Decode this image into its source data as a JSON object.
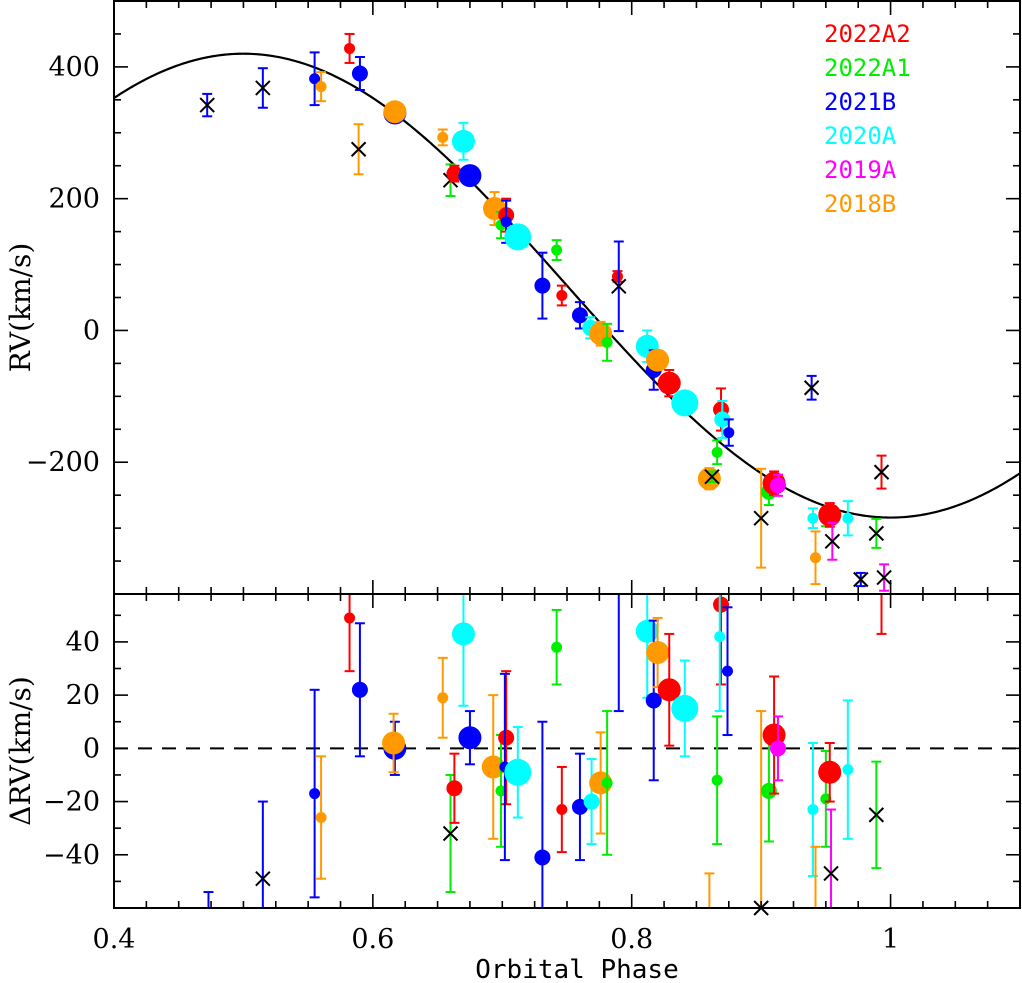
{
  "chart_data": {
    "type": "scatter",
    "x_range": [
      0.4,
      1.1
    ],
    "xlabel": "Orbital Phase",
    "x_ticks": [
      0.4,
      0.6,
      0.8,
      1.0
    ],
    "x_tick_labels": [
      "0.4",
      "0.6",
      "0.8",
      "1"
    ],
    "legend_position": "top-right",
    "colors": {
      "2022A2": "#ff0000",
      "2022A1": "#00ee00",
      "2021B": "#0000ff",
      "2020A": "#00ffff",
      "2019A": "#ff00ff",
      "2018B": "#ff9900",
      "excluded": "#000000"
    },
    "legend": [
      "2022A2",
      "2022A1",
      "2021B",
      "2020A",
      "2019A",
      "2018B"
    ],
    "top_panel": {
      "ylabel": "RV(km/s)",
      "y_range": [
        -400,
        500
      ],
      "y_ticks": [
        -200,
        0,
        200,
        400
      ],
      "y_tick_labels": [
        "−200",
        "0",
        "200",
        "400"
      ],
      "model_curve": {
        "gamma": 68,
        "amplitude": 352,
        "phase_of_max": 0.5,
        "style": "solid",
        "color": "#000000"
      },
      "points": [
        {
          "x": 0.472,
          "y": 342,
          "err": 17,
          "set": "2021B",
          "size": "x"
        },
        {
          "x": 0.515,
          "y": 368,
          "err": 30,
          "set": "2021B",
          "size": "x"
        },
        {
          "x": 0.555,
          "y": 382,
          "err": 40,
          "set": "2021B",
          "size": "small"
        },
        {
          "x": 0.56,
          "y": 370,
          "err": 22,
          "set": "2018B",
          "size": "small"
        },
        {
          "x": 0.582,
          "y": 428,
          "err": 22,
          "set": "2022A2",
          "size": "small"
        },
        {
          "x": 0.589,
          "y": 275,
          "err": 38,
          "set": "2018B",
          "size": "x"
        },
        {
          "x": 0.59,
          "y": 390,
          "err": 25,
          "set": "2021B",
          "size": "medium"
        },
        {
          "x": 0.617,
          "y": 330,
          "err": 12,
          "set": "2021B",
          "size": "large"
        },
        {
          "x": 0.617,
          "y": 332,
          "err": 12,
          "set": "2018B",
          "size": "large"
        },
        {
          "x": 0.654,
          "y": 293,
          "err": 12,
          "set": "2018B",
          "size": "small"
        },
        {
          "x": 0.66,
          "y": 228,
          "err": 24,
          "set": "2022A1",
          "size": "x"
        },
        {
          "x": 0.663,
          "y": 238,
          "err": 12,
          "set": "2022A2",
          "size": "medium"
        },
        {
          "x": 0.67,
          "y": 287,
          "err": 28,
          "set": "2020A",
          "size": "large"
        },
        {
          "x": 0.675,
          "y": 235,
          "err": 12,
          "set": "2021B",
          "size": "large"
        },
        {
          "x": 0.694,
          "y": 185,
          "err": 25,
          "set": "2018B",
          "size": "large"
        },
        {
          "x": 0.699,
          "y": 160,
          "err": 20,
          "set": "2022A1",
          "size": "small"
        },
        {
          "x": 0.703,
          "y": 175,
          "err": 25,
          "set": "2022A2",
          "size": "medium"
        },
        {
          "x": 0.703,
          "y": 165,
          "err": 32,
          "set": "2021B",
          "size": "small"
        },
        {
          "x": 0.712,
          "y": 142,
          "err": 17,
          "set": "2020A",
          "size": "xlarge"
        },
        {
          "x": 0.731,
          "y": 68,
          "err": 50,
          "set": "2021B",
          "size": "medium"
        },
        {
          "x": 0.742,
          "y": 122,
          "err": 15,
          "set": "2022A1",
          "size": "small"
        },
        {
          "x": 0.746,
          "y": 53,
          "err": 15,
          "set": "2022A2",
          "size": "small"
        },
        {
          "x": 0.76,
          "y": 23,
          "err": 20,
          "set": "2021B",
          "size": "medium"
        },
        {
          "x": 0.768,
          "y": 4,
          "err": 16,
          "set": "2020A",
          "size": "medium"
        },
        {
          "x": 0.776,
          "y": -5,
          "err": 18,
          "set": "2018B",
          "size": "large"
        },
        {
          "x": 0.781,
          "y": -18,
          "err": 28,
          "set": "2022A1",
          "size": "small"
        },
        {
          "x": 0.789,
          "y": 82,
          "err": 8,
          "set": "2022A2",
          "size": "small"
        },
        {
          "x": 0.79,
          "y": 67,
          "err": 68,
          "set": "2021B",
          "size": "x"
        },
        {
          "x": 0.812,
          "y": -24,
          "err": 24,
          "set": "2020A",
          "size": "large"
        },
        {
          "x": 0.817,
          "y": -60,
          "err": 30,
          "set": "2021B",
          "size": "medium"
        },
        {
          "x": 0.82,
          "y": -45,
          "err": 14,
          "set": "2018B",
          "size": "large"
        },
        {
          "x": 0.829,
          "y": -80,
          "err": 20,
          "set": "2022A2",
          "size": "large"
        },
        {
          "x": 0.841,
          "y": -110,
          "err": 12,
          "set": "2020A",
          "size": "xlarge"
        },
        {
          "x": 0.86,
          "y": -225,
          "err": 16,
          "set": "2018B",
          "size": "large"
        },
        {
          "x": 0.862,
          "y": -222,
          "err": 8,
          "set": "2022A1",
          "size": "x"
        },
        {
          "x": 0.866,
          "y": -185,
          "err": 18,
          "set": "2022A1",
          "size": "small"
        },
        {
          "x": 0.869,
          "y": -120,
          "err": 32,
          "set": "2022A2",
          "size": "medium"
        },
        {
          "x": 0.87,
          "y": -135,
          "err": 28,
          "set": "2020A",
          "size": "medium"
        },
        {
          "x": 0.875,
          "y": -155,
          "err": 20,
          "set": "2021B",
          "size": "small"
        },
        {
          "x": 0.9,
          "y": -285,
          "err": 75,
          "set": "2018B",
          "size": "x"
        },
        {
          "x": 0.906,
          "y": -245,
          "err": 20,
          "set": "2022A1",
          "size": "medium"
        },
        {
          "x": 0.91,
          "y": -232,
          "err": 18,
          "set": "2022A2",
          "size": "large"
        },
        {
          "x": 0.913,
          "y": -235,
          "err": 16,
          "set": "2019A",
          "size": "medium"
        },
        {
          "x": 0.939,
          "y": -87,
          "err": 18,
          "set": "2021B",
          "size": "x"
        },
        {
          "x": 0.94,
          "y": -285,
          "err": 15,
          "set": "2020A",
          "size": "small"
        },
        {
          "x": 0.942,
          "y": -345,
          "err": 40,
          "set": "2018B",
          "size": "small"
        },
        {
          "x": 0.95,
          "y": -285,
          "err": 12,
          "set": "2022A1",
          "size": "small"
        },
        {
          "x": 0.953,
          "y": -280,
          "err": 18,
          "set": "2022A2",
          "size": "large"
        },
        {
          "x": 0.955,
          "y": -320,
          "err": 28,
          "set": "2019A",
          "size": "x"
        },
        {
          "x": 0.967,
          "y": -285,
          "err": 26,
          "set": "2020A",
          "size": "small"
        },
        {
          "x": 0.977,
          "y": -378,
          "err": 10,
          "set": "2021B",
          "size": "x"
        },
        {
          "x": 0.989,
          "y": -308,
          "err": 22,
          "set": "2022A1",
          "size": "x"
        },
        {
          "x": 0.993,
          "y": -215,
          "err": 25,
          "set": "2022A2",
          "size": "x"
        },
        {
          "x": 0.995,
          "y": -375,
          "err": 20,
          "set": "2019A",
          "size": "x"
        }
      ]
    },
    "bottom_panel": {
      "ylabel": "ΔRV(km/s)",
      "y_range": [
        -60,
        58
      ],
      "y_ticks": [
        -40,
        -20,
        0,
        20,
        40
      ],
      "y_tick_labels": [
        "−40",
        "−20",
        "0",
        "20",
        "40"
      ],
      "zero_line": {
        "y": 0,
        "style": "dashed"
      },
      "points": [
        {
          "x": 0.473,
          "y": -62,
          "err": 8,
          "set": "2021B",
          "size": "x"
        },
        {
          "x": 0.515,
          "y": -49,
          "err": 29,
          "set": "2021B",
          "size": "x"
        },
        {
          "x": 0.555,
          "y": -17,
          "err": 39,
          "set": "2021B",
          "size": "small"
        },
        {
          "x": 0.56,
          "y": -26,
          "err": 23,
          "set": "2018B",
          "size": "small"
        },
        {
          "x": 0.582,
          "y": 49,
          "err": 20,
          "set": "2022A2",
          "size": "small"
        },
        {
          "x": 0.59,
          "y": 22,
          "err": 25,
          "set": "2021B",
          "size": "medium"
        },
        {
          "x": 0.617,
          "y": 0,
          "err": 10,
          "set": "2021B",
          "size": "large"
        },
        {
          "x": 0.616,
          "y": 2,
          "err": 11,
          "set": "2018B",
          "size": "large"
        },
        {
          "x": 0.654,
          "y": 19,
          "err": 15,
          "set": "2018B",
          "size": "small"
        },
        {
          "x": 0.66,
          "y": -32,
          "err": 22,
          "set": "2022A1",
          "size": "x"
        },
        {
          "x": 0.663,
          "y": -15,
          "err": 13,
          "set": "2022A2",
          "size": "medium"
        },
        {
          "x": 0.67,
          "y": 43,
          "err": 27,
          "set": "2020A",
          "size": "large"
        },
        {
          "x": 0.675,
          "y": 4,
          "err": 10,
          "set": "2021B",
          "size": "large"
        },
        {
          "x": 0.693,
          "y": -7,
          "err": 27,
          "set": "2018B",
          "size": "large"
        },
        {
          "x": 0.699,
          "y": -16,
          "err": 21,
          "set": "2022A1",
          "size": "small"
        },
        {
          "x": 0.703,
          "y": 4,
          "err": 25,
          "set": "2022A2",
          "size": "medium"
        },
        {
          "x": 0.702,
          "y": -7,
          "err": 35,
          "set": "2021B",
          "size": "small"
        },
        {
          "x": 0.712,
          "y": -9,
          "err": 17,
          "set": "2020A",
          "size": "xlarge"
        },
        {
          "x": 0.731,
          "y": -41,
          "err": 51,
          "set": "2021B",
          "size": "medium"
        },
        {
          "x": 0.742,
          "y": 38,
          "err": 14,
          "set": "2022A1",
          "size": "small"
        },
        {
          "x": 0.746,
          "y": -23,
          "err": 16,
          "set": "2022A2",
          "size": "small"
        },
        {
          "x": 0.76,
          "y": -22,
          "err": 20,
          "set": "2021B",
          "size": "medium"
        },
        {
          "x": 0.769,
          "y": -20,
          "err": 16,
          "set": "2020A",
          "size": "medium"
        },
        {
          "x": 0.776,
          "y": -13,
          "err": 19,
          "set": "2018B",
          "size": "large"
        },
        {
          "x": 0.781,
          "y": -13,
          "err": 27,
          "set": "2022A1",
          "size": "small"
        },
        {
          "x": 0.79,
          "y": 81,
          "err": 67,
          "set": "2021B",
          "size": "small"
        },
        {
          "x": 0.812,
          "y": 44,
          "err": 25,
          "set": "2020A",
          "size": "large"
        },
        {
          "x": 0.817,
          "y": 18,
          "err": 30,
          "set": "2021B",
          "size": "medium"
        },
        {
          "x": 0.82,
          "y": 36,
          "err": 13,
          "set": "2018B",
          "size": "large"
        },
        {
          "x": 0.829,
          "y": 22,
          "err": 21,
          "set": "2022A2",
          "size": "large"
        },
        {
          "x": 0.841,
          "y": 15,
          "err": 18,
          "set": "2020A",
          "size": "xlarge"
        },
        {
          "x": 0.86,
          "y": -64,
          "err": 17,
          "set": "2018B",
          "size": "small"
        },
        {
          "x": 0.866,
          "y": -12,
          "err": 24,
          "set": "2022A1",
          "size": "small"
        },
        {
          "x": 0.869,
          "y": 54,
          "err": 30,
          "set": "2022A2",
          "size": "medium"
        },
        {
          "x": 0.868,
          "y": 42,
          "err": 28,
          "set": "2020A",
          "size": "small"
        },
        {
          "x": 0.874,
          "y": 29,
          "err": 24,
          "set": "2021B",
          "size": "small"
        },
        {
          "x": 0.9,
          "y": -60,
          "err": 74,
          "set": "2018B",
          "size": "x"
        },
        {
          "x": 0.906,
          "y": -16,
          "err": 19,
          "set": "2022A1",
          "size": "medium"
        },
        {
          "x": 0.91,
          "y": 5,
          "err": 22,
          "set": "2022A2",
          "size": "large"
        },
        {
          "x": 0.913,
          "y": 0,
          "err": 12,
          "set": "2019A",
          "size": "medium"
        },
        {
          "x": 0.94,
          "y": -23,
          "err": 25,
          "set": "2020A",
          "size": "small"
        },
        {
          "x": 0.942,
          "y": -62,
          "err": 25,
          "set": "2018B",
          "size": "small"
        },
        {
          "x": 0.95,
          "y": -19,
          "err": 18,
          "set": "2022A1",
          "size": "small"
        },
        {
          "x": 0.953,
          "y": -9,
          "err": 11,
          "set": "2022A2",
          "size": "large"
        },
        {
          "x": 0.954,
          "y": -47,
          "err": 24,
          "set": "2019A",
          "size": "x"
        },
        {
          "x": 0.967,
          "y": -8,
          "err": 26,
          "set": "2020A",
          "size": "small"
        },
        {
          "x": 0.989,
          "y": -25,
          "err": 20,
          "set": "2022A1",
          "size": "x"
        },
        {
          "x": 0.993,
          "y": 62,
          "err": 19,
          "set": "2022A2",
          "size": "small"
        }
      ]
    }
  }
}
